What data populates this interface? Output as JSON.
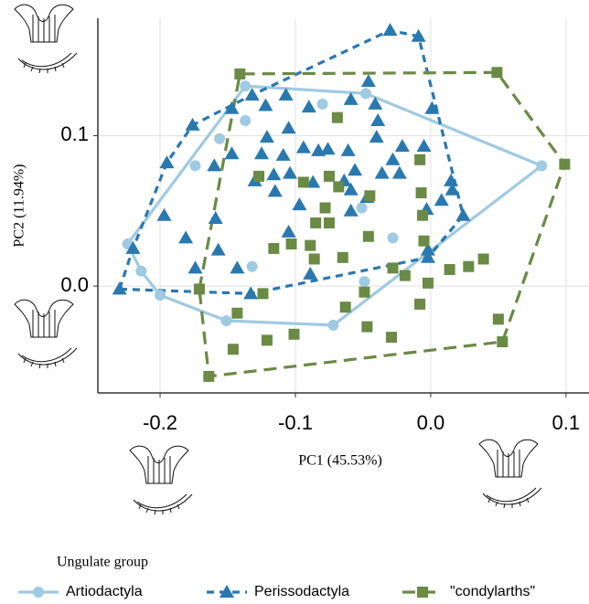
{
  "chart_data": {
    "type": "scatter",
    "xlabel": "PC1 (45.53%)",
    "ylabel": "PC2 (11.94%)",
    "legend_title": "Ungulate group",
    "legend_position": "bottom",
    "grid": true,
    "hull": true,
    "xlim": [
      -0.246,
      0.117
    ],
    "ylim": [
      -0.071,
      0.178
    ],
    "xticks": [
      -0.2,
      -0.1,
      {
        "value": 0,
        "label": "0.0"
      },
      0.1
    ],
    "yticks": [
      {
        "value": 0,
        "label": "0.0"
      },
      0.1
    ],
    "series": [
      {
        "name": "Artiodactyla",
        "color": "#9fcae2",
        "marker": "circle",
        "linestyle": "solid",
        "x": [
          -0.137,
          -0.048,
          -0.08,
          -0.137,
          -0.156,
          -0.174,
          -0.224,
          -0.214,
          -0.2,
          -0.151,
          -0.132,
          -0.072,
          -0.049,
          -0.051,
          -0.028,
          0.082
        ],
        "values": [
          0.133,
          0.128,
          0.121,
          0.11,
          0.098,
          0.08,
          0.028,
          0.01,
          -0.006,
          -0.023,
          0.013,
          -0.026,
          0.003,
          0.052,
          0.032,
          0.08
        ]
      },
      {
        "name": "Perissodactyla",
        "color": "#2a78b0",
        "marker": "triangle",
        "linestyle": "short-dash",
        "x": [
          -0.03,
          -0.009,
          -0.046,
          -0.041,
          0.001,
          -0.176,
          -0.147,
          -0.122,
          -0.132,
          -0.107,
          -0.09,
          -0.059,
          -0.039,
          -0.121,
          -0.105,
          -0.147,
          -0.094,
          -0.076,
          -0.04,
          -0.021,
          -0.005,
          -0.195,
          -0.16,
          -0.125,
          -0.109,
          -0.083,
          -0.061,
          -0.028,
          -0.116,
          -0.104,
          -0.056,
          -0.036,
          -0.023,
          0.015,
          -0.13,
          -0.115,
          -0.087,
          -0.064,
          -0.059,
          -0.047,
          0.008,
          -0.097,
          -0.059,
          0.024,
          -0.003,
          -0.197,
          -0.159,
          -0.105,
          -0.181,
          -0.22,
          -0.157,
          -0.143,
          -0.174,
          -0.089,
          -0.133,
          -0.002,
          -0.23,
          0.016,
          -0.002
        ],
        "values": [
          0.17,
          0.166,
          0.136,
          0.121,
          0.118,
          0.107,
          0.118,
          0.12,
          0.127,
          0.127,
          0.119,
          0.124,
          0.11,
          0.099,
          0.105,
          0.088,
          0.092,
          0.091,
          0.099,
          0.093,
          0.093,
          0.082,
          0.08,
          0.088,
          0.087,
          0.09,
          0.09,
          0.084,
          0.074,
          0.075,
          0.077,
          0.075,
          0.075,
          0.07,
          0.07,
          0.063,
          0.069,
          0.07,
          0.064,
          0.059,
          0.057,
          0.054,
          0.05,
          0.047,
          0.051,
          0.047,
          0.045,
          0.036,
          0.032,
          0.025,
          0.024,
          0.012,
          0.012,
          0.008,
          -0.005,
          0.019,
          -0.002,
          0.064,
          0.024
        ]
      },
      {
        "name": "\"condylarths\"",
        "color": "#6a8a45",
        "marker": "square",
        "linestyle": "long-dash",
        "x": [
          -0.141,
          0.049,
          0.099,
          -0.069,
          -0.008,
          -0.127,
          -0.094,
          -0.075,
          -0.068,
          -0.045,
          -0.007,
          -0.078,
          -0.075,
          -0.006,
          -0.085,
          -0.116,
          -0.103,
          -0.089,
          -0.086,
          -0.171,
          -0.124,
          -0.143,
          -0.146,
          -0.164,
          -0.121,
          -0.101,
          -0.063,
          -0.049,
          -0.028,
          -0.019,
          -0.005,
          0.014,
          0.028,
          0.039,
          0.05,
          0.053,
          -0.008,
          -0.047,
          -0.029,
          -0.046,
          -0.002,
          -0.065
        ],
        "values": [
          0.141,
          0.142,
          0.081,
          0.112,
          0.084,
          0.073,
          0.069,
          0.073,
          0.066,
          0.06,
          0.062,
          0.052,
          0.042,
          0.047,
          0.042,
          0.025,
          0.028,
          0.027,
          0.018,
          -0.002,
          -0.005,
          -0.018,
          -0.042,
          -0.06,
          -0.036,
          -0.032,
          -0.014,
          -0.004,
          0.012,
          0.007,
          0.03,
          0.011,
          0.013,
          0.018,
          -0.022,
          -0.037,
          -0.012,
          -0.027,
          -0.034,
          0.033,
          0.002,
          0.019
        ]
      }
    ]
  }
}
